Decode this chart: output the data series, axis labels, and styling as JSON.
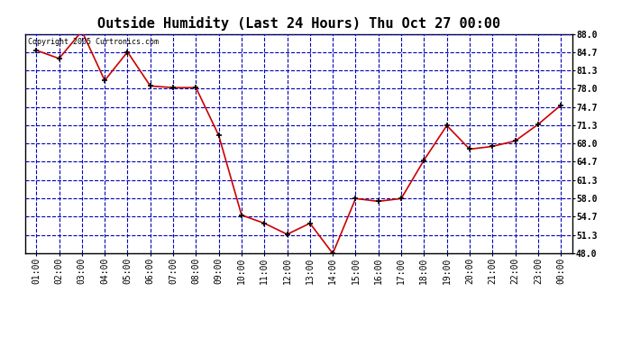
{
  "title": "Outside Humidity (Last 24 Hours) Thu Oct 27 00:00",
  "copyright": "Copyright 2005 Curtronics.com",
  "x_labels": [
    "01:00",
    "02:00",
    "03:00",
    "04:00",
    "05:00",
    "06:00",
    "07:00",
    "08:00",
    "09:00",
    "10:00",
    "11:00",
    "12:00",
    "13:00",
    "14:00",
    "15:00",
    "16:00",
    "17:00",
    "18:00",
    "19:00",
    "20:00",
    "21:00",
    "22:00",
    "23:00",
    "00:00"
  ],
  "x_values": [
    1,
    2,
    3,
    4,
    5,
    6,
    7,
    8,
    9,
    10,
    11,
    12,
    13,
    14,
    15,
    16,
    17,
    18,
    19,
    20,
    21,
    22,
    23,
    24
  ],
  "y_values": [
    85.0,
    83.5,
    88.5,
    79.5,
    84.7,
    78.5,
    78.2,
    78.2,
    69.5,
    55.0,
    53.5,
    51.5,
    53.5,
    48.0,
    58.0,
    57.5,
    58.0,
    65.0,
    71.3,
    67.0,
    67.5,
    68.5,
    71.5,
    75.0
  ],
  "y_ticks": [
    48.0,
    51.3,
    54.7,
    58.0,
    61.3,
    64.7,
    68.0,
    71.3,
    74.7,
    78.0,
    81.3,
    84.7,
    88.0
  ],
  "y_min": 48.0,
  "y_max": 88.0,
  "line_color": "#cc0000",
  "marker_color": "#000000",
  "bg_color": "#ffffff",
  "fig_bg_color": "#ffffff",
  "title_fontsize": 11,
  "grid_color": "#0000bb",
  "border_color": "#000000"
}
